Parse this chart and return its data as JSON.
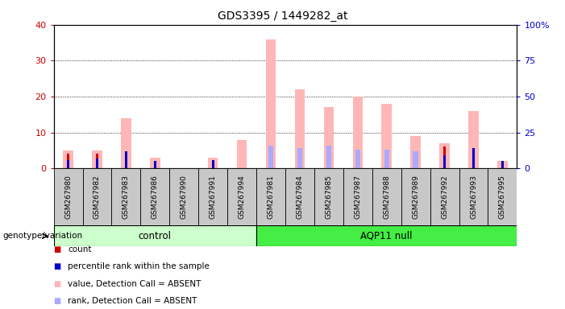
{
  "title": "GDS3395 / 1449282_at",
  "samples": [
    "GSM267980",
    "GSM267982",
    "GSM267983",
    "GSM267986",
    "GSM267990",
    "GSM267991",
    "GSM267994",
    "GSM267981",
    "GSM267984",
    "GSM267985",
    "GSM267987",
    "GSM267988",
    "GSM267989",
    "GSM267992",
    "GSM267993",
    "GSM267995"
  ],
  "groups": [
    "control",
    "control",
    "control",
    "control",
    "control",
    "control",
    "control",
    "AQP11 null",
    "AQP11 null",
    "AQP11 null",
    "AQP11 null",
    "AQP11 null",
    "AQP11 null",
    "AQP11 null",
    "AQP11 null",
    "AQP11 null"
  ],
  "count_values": [
    4,
    4,
    0,
    1,
    0,
    1,
    0,
    0,
    0,
    0,
    0,
    0,
    0,
    6,
    0,
    2
  ],
  "rank_values": [
    6,
    7,
    12,
    5,
    0,
    6,
    0,
    0,
    0,
    0,
    0,
    0,
    0,
    9,
    14,
    5
  ],
  "absent_value_values": [
    5,
    5,
    14,
    3,
    0,
    3,
    8,
    36,
    22,
    17,
    20,
    18,
    9,
    7,
    16,
    2
  ],
  "absent_rank_values": [
    0,
    0,
    0,
    0,
    0,
    0,
    0,
    16,
    14,
    16,
    13,
    13,
    12,
    0,
    0,
    0
  ],
  "ylim_left": [
    0,
    40
  ],
  "ylim_right": [
    0,
    100
  ],
  "yticks_left": [
    0,
    10,
    20,
    30,
    40
  ],
  "yticks_right": [
    0,
    25,
    50,
    75,
    100
  ],
  "ylabel_left_color": "#CC0000",
  "ylabel_right_color": "#0000CC",
  "count_color": "#CC0000",
  "rank_color": "#0000CC",
  "absent_value_color": "#FFB6B6",
  "absent_rank_color": "#AAAAFF",
  "legend_items": [
    "count",
    "percentile rank within the sample",
    "value, Detection Call = ABSENT",
    "rank, Detection Call = ABSENT"
  ],
  "legend_colors": [
    "#CC0000",
    "#0000CC",
    "#FFB6B6",
    "#AAAAFF"
  ],
  "genotype_label": "genotype/variation",
  "group_split": 7,
  "ctrl_color": "#CCFFCC",
  "aqp_color": "#44EE44",
  "cell_bg": "#C8C8C8"
}
